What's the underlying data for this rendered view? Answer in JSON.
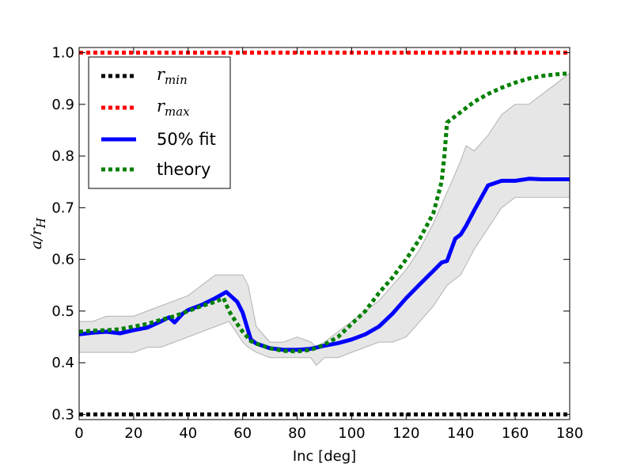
{
  "chart_data": {
    "type": "line",
    "title": "",
    "xlabel": "Inc [deg]",
    "ylabel": {
      "base": "a/r",
      "sub": "H"
    },
    "xlim": [
      0,
      180
    ],
    "ylim": [
      0.29,
      1.01
    ],
    "xticks": [
      0,
      20,
      40,
      60,
      80,
      100,
      120,
      140,
      160,
      180
    ],
    "xtick_labels": [
      "0",
      "20",
      "40",
      "60",
      "80",
      "100",
      "120",
      "140",
      "160",
      "180"
    ],
    "yticks": [
      0.3,
      0.4,
      0.5,
      0.6,
      0.7,
      0.8,
      0.9,
      1.0
    ],
    "ytick_labels": [
      "0.3",
      "0.4",
      "0.5",
      "0.6",
      "0.7",
      "0.8",
      "0.9",
      "1.0"
    ],
    "legend_position": "top-left",
    "band": {
      "name": "spread",
      "color": "#e6e6e6",
      "edge_color": "#b3b3b3",
      "x": [
        0,
        5,
        10,
        15,
        20,
        25,
        30,
        35,
        40,
        45,
        50,
        55,
        60,
        62,
        65,
        70,
        75,
        80,
        85,
        87,
        90,
        95,
        100,
        105,
        110,
        115,
        120,
        125,
        130,
        135,
        140,
        142,
        145,
        150,
        155,
        160,
        165,
        170,
        175,
        180
      ],
      "upper": [
        0.48,
        0.48,
        0.49,
        0.49,
        0.49,
        0.5,
        0.51,
        0.52,
        0.53,
        0.55,
        0.57,
        0.57,
        0.57,
        0.55,
        0.47,
        0.44,
        0.44,
        0.45,
        0.44,
        0.43,
        0.44,
        0.46,
        0.48,
        0.5,
        0.52,
        0.55,
        0.58,
        0.62,
        0.67,
        0.73,
        0.79,
        0.82,
        0.81,
        0.84,
        0.88,
        0.9,
        0.9,
        0.92,
        0.94,
        0.96
      ],
      "lower": [
        0.42,
        0.42,
        0.42,
        0.42,
        0.42,
        0.43,
        0.43,
        0.44,
        0.45,
        0.46,
        0.47,
        0.48,
        0.44,
        0.43,
        0.42,
        0.41,
        0.41,
        0.41,
        0.41,
        0.395,
        0.41,
        0.41,
        0.42,
        0.43,
        0.44,
        0.44,
        0.45,
        0.48,
        0.51,
        0.55,
        0.57,
        0.59,
        0.62,
        0.66,
        0.7,
        0.72,
        0.72,
        0.72,
        0.72,
        0.72
      ]
    },
    "series": [
      {
        "name": "r_min",
        "legend_main": "r",
        "legend_sub": "min",
        "color": "#000000",
        "style": "dotted",
        "x": [
          0,
          180
        ],
        "y": [
          0.3,
          0.3
        ]
      },
      {
        "name": "r_max",
        "legend_main": "r",
        "legend_sub": "max",
        "color": "#ff0000",
        "style": "dotted",
        "x": [
          0,
          180
        ],
        "y": [
          1.0,
          1.0
        ]
      },
      {
        "name": "50% fit",
        "color": "#0000ff",
        "style": "solid",
        "x": [
          0,
          5,
          10,
          15,
          20,
          25,
          30,
          33,
          35,
          38,
          40,
          45,
          50,
          54,
          58,
          60,
          63,
          65,
          70,
          75,
          80,
          85,
          90,
          95,
          100,
          105,
          110,
          115,
          120,
          125,
          130,
          133,
          135,
          138,
          140,
          142,
          145,
          150,
          155,
          160,
          165,
          170,
          175,
          180
        ],
        "y": [
          0.455,
          0.458,
          0.46,
          0.457,
          0.463,
          0.468,
          0.48,
          0.488,
          0.478,
          0.495,
          0.502,
          0.512,
          0.525,
          0.537,
          0.518,
          0.497,
          0.445,
          0.437,
          0.428,
          0.425,
          0.425,
          0.427,
          0.433,
          0.438,
          0.445,
          0.455,
          0.47,
          0.495,
          0.525,
          0.552,
          0.578,
          0.594,
          0.597,
          0.64,
          0.648,
          0.665,
          0.695,
          0.743,
          0.752,
          0.752,
          0.756,
          0.755,
          0.755,
          0.755
        ]
      },
      {
        "name": "theory",
        "color": "#008000",
        "style": "dotted",
        "x": [
          0,
          5,
          10,
          15,
          20,
          25,
          30,
          35,
          40,
          45,
          50,
          53,
          55,
          58,
          60,
          63,
          65,
          70,
          75,
          80,
          85,
          90,
          95,
          100,
          105,
          110,
          115,
          120,
          125,
          130,
          133,
          134,
          135,
          140,
          145,
          150,
          155,
          160,
          165,
          170,
          175,
          180
        ],
        "y": [
          0.46,
          0.462,
          0.463,
          0.465,
          0.47,
          0.475,
          0.483,
          0.49,
          0.5,
          0.51,
          0.518,
          0.525,
          0.5,
          0.475,
          0.46,
          0.442,
          0.437,
          0.428,
          0.423,
          0.422,
          0.425,
          0.435,
          0.45,
          0.475,
          0.5,
          0.535,
          0.565,
          0.6,
          0.64,
          0.69,
          0.75,
          0.8,
          0.865,
          0.885,
          0.905,
          0.92,
          0.932,
          0.942,
          0.95,
          0.955,
          0.958,
          0.96
        ]
      }
    ]
  }
}
